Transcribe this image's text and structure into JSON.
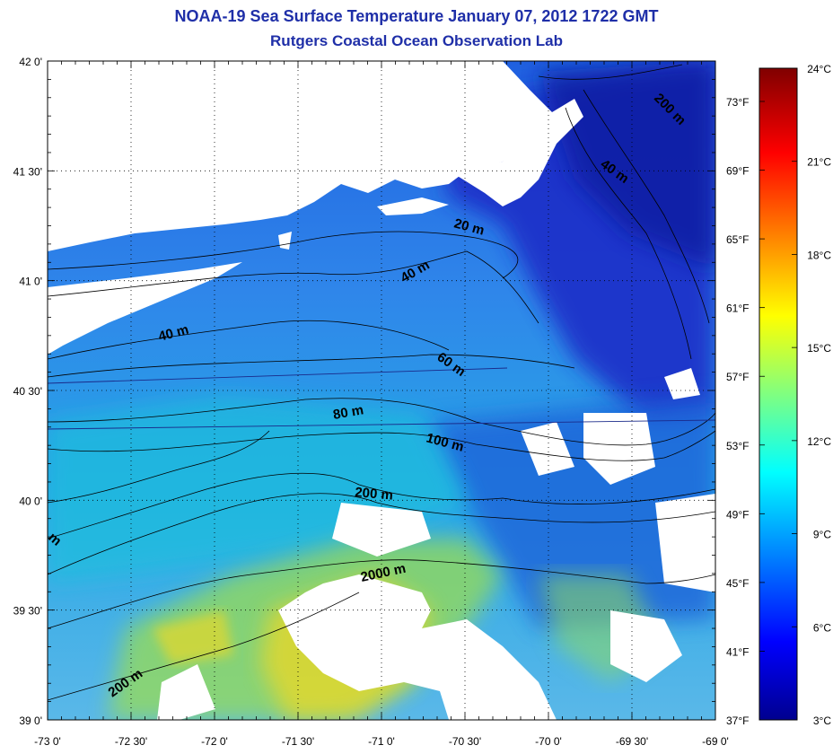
{
  "header": {
    "title": "NOAA-19 Sea Surface Temperature January 07, 2012 1722 GMT",
    "subtitle": "Rutgers Coastal Ocean Observation Lab"
  },
  "map": {
    "lat_ticks": [
      "42 0'",
      "41 30'",
      "41 0'",
      "40 30'",
      "40 0'",
      "39 30'",
      "39 0'"
    ],
    "lon_ticks": [
      "-73 0'",
      "-72 30'",
      "-72 0'",
      "-71 30'",
      "-71 0'",
      "-70 30'",
      "-70 0'",
      "-69 30'",
      "-69 0'"
    ],
    "fahrenheit_ticks": [
      "73°F",
      "69°F",
      "65°F",
      "61°F",
      "57°F",
      "53°F",
      "49°F",
      "45°F",
      "41°F",
      "37°F"
    ],
    "contour_labels": [
      "200 m",
      "40 m",
      "20 m",
      "40 m",
      "40 m",
      "60 m",
      "80 m",
      "100 m",
      "200 m",
      "2000 m",
      "200 m",
      "m"
    ],
    "colors": {
      "cold": "#0a1a9a",
      "cool": "#2a7fe6",
      "mid": "#18c0d8",
      "warm": "#e6dc2a",
      "hot": "#e67a1a",
      "land": "#ffffff",
      "contour": "#000000"
    }
  },
  "colorbar": {
    "celsius_ticks": [
      "24°C",
      "21°C",
      "18°C",
      "15°C",
      "12°C",
      "9°C",
      "6°C",
      "3°C"
    ],
    "range_c": [
      3,
      24
    ]
  }
}
